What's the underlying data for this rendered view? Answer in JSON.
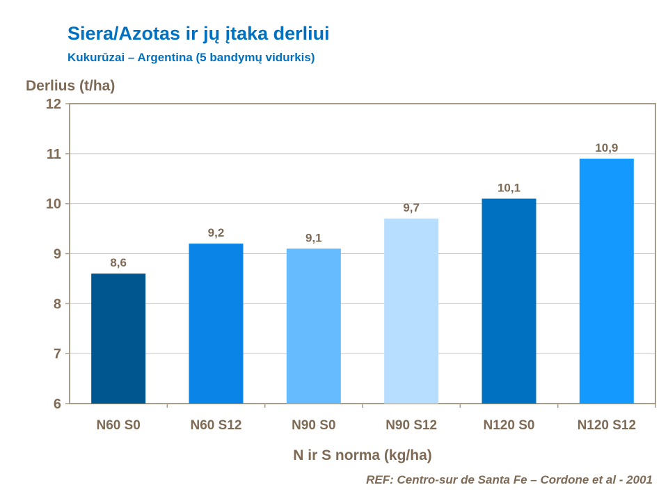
{
  "chart_data": {
    "type": "bar",
    "title": "Siera/Azotas ir jų įtaka derliui",
    "subtitle": "Kukurūzai – Argentina (5 bandymų vidurkis)",
    "ylabel": "Derlius (t/ha)",
    "xlabel": "N ir S norma (kg/ha)",
    "categories": [
      "N60 S0",
      "N60 S12",
      "N90 S0",
      "N90 S12",
      "N120 S0",
      "N120 S12"
    ],
    "values": [
      8.6,
      9.2,
      9.1,
      9.7,
      10.1,
      10.9
    ],
    "data_labels": [
      "8,6",
      "9,2",
      "9,1",
      "9,7",
      "10,1",
      "10,9"
    ],
    "colors": [
      "#00568F",
      "#0A84E6",
      "#66BBFF",
      "#B8DEFF",
      "#0070C0",
      "#1499FF"
    ],
    "ylim": [
      6,
      12
    ],
    "yticks": [
      6,
      7,
      8,
      9,
      10,
      11,
      12
    ],
    "grid": true,
    "legend": "none"
  },
  "reference": "REF: Centro-sur de Santa Fe – Cordone et al - 2001"
}
